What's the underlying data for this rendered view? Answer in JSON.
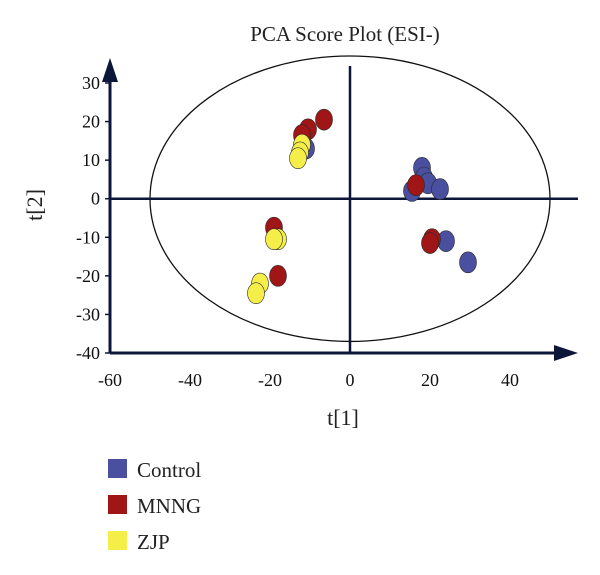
{
  "chart_data": {
    "type": "scatter",
    "title": "PCA Score Plot (ESI-)",
    "xlabel": "t[1]",
    "ylabel": "t[2]",
    "xlim": [
      -60,
      60
    ],
    "ylim": [
      -40,
      37
    ],
    "xticks": [
      -60,
      -40,
      -20,
      0,
      20,
      40
    ],
    "yticks": [
      -40,
      -30,
      -20,
      -10,
      0,
      10,
      20,
      30
    ],
    "grid": false,
    "legend_position": "bottom-left",
    "confidence_ellipse": {
      "center": [
        0,
        0
      ],
      "rx": 50,
      "ry": 37
    },
    "series": [
      {
        "name": "Control",
        "color": "#4a4f9f",
        "points": [
          [
            -11,
            13
          ],
          [
            18,
            8
          ],
          [
            18.5,
            5.5
          ],
          [
            19.5,
            4
          ],
          [
            22.5,
            2.5
          ],
          [
            15.5,
            2
          ],
          [
            24,
            -11
          ],
          [
            29.5,
            -16.5
          ]
        ]
      },
      {
        "name": "MNNG",
        "color": "#a01515",
        "points": [
          [
            -6.5,
            20.5
          ],
          [
            -10.5,
            18
          ],
          [
            -12,
            16.5
          ],
          [
            16.5,
            3.5
          ],
          [
            20.5,
            -10.5
          ],
          [
            20,
            -11.5
          ],
          [
            -19,
            -7.5
          ],
          [
            -18,
            -20
          ]
        ]
      },
      {
        "name": "ZJP",
        "color": "#f6ee48",
        "points": [
          [
            -12,
            14
          ],
          [
            -12.5,
            12
          ],
          [
            -13,
            10.5
          ],
          [
            -18,
            -10.5
          ],
          [
            -19,
            -10.5
          ],
          [
            -22.5,
            -22
          ],
          [
            -23.5,
            -24.5
          ]
        ]
      }
    ]
  }
}
